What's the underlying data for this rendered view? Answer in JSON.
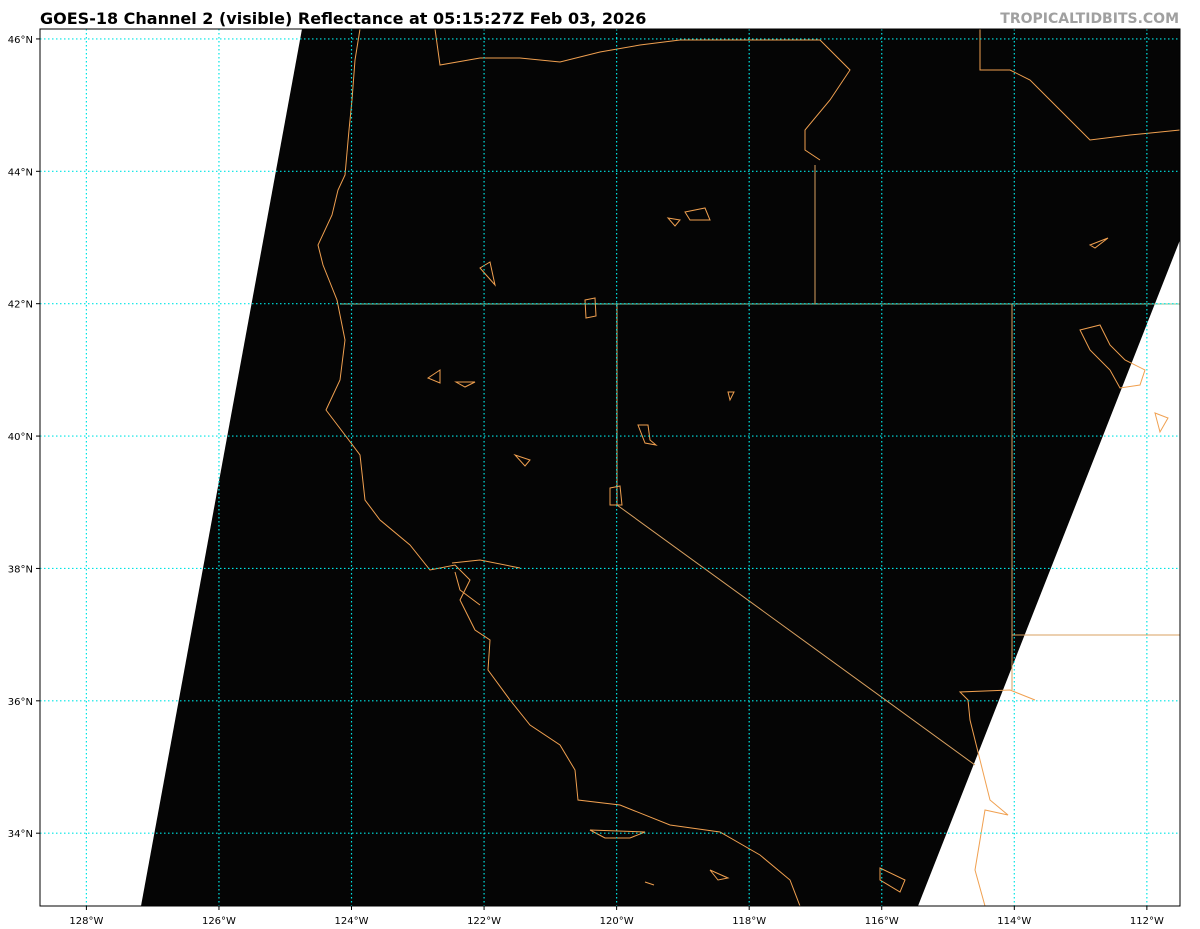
{
  "title": "GOES-18 Channel 2 (visible) Reflectance at 05:15:27Z Feb 03, 2026",
  "credit": "TROPICALTIDBITS.COM",
  "map": {
    "lon_range": [
      -128.7,
      -111.5
    ],
    "lat_range": [
      32.9,
      46.15
    ],
    "lon_ticks": [
      -128,
      -126,
      -124,
      -122,
      -120,
      -118,
      -116,
      -114,
      -112
    ],
    "lon_labels": [
      "128°W",
      "126°W",
      "124°W",
      "122°W",
      "120°W",
      "118°W",
      "116°W",
      "114°W",
      "112°W"
    ],
    "lat_ticks": [
      46,
      44,
      42,
      40,
      38,
      36,
      34
    ],
    "lat_labels": [
      "46°N",
      "44°N",
      "42°N",
      "40°N",
      "38°N",
      "36°N",
      "34°N"
    ],
    "colors": {
      "imagery": "#050505",
      "grid": "#00e5e5",
      "coast": "#f0a050",
      "border": "#8fbf8f",
      "background": "#ffffff"
    }
  }
}
